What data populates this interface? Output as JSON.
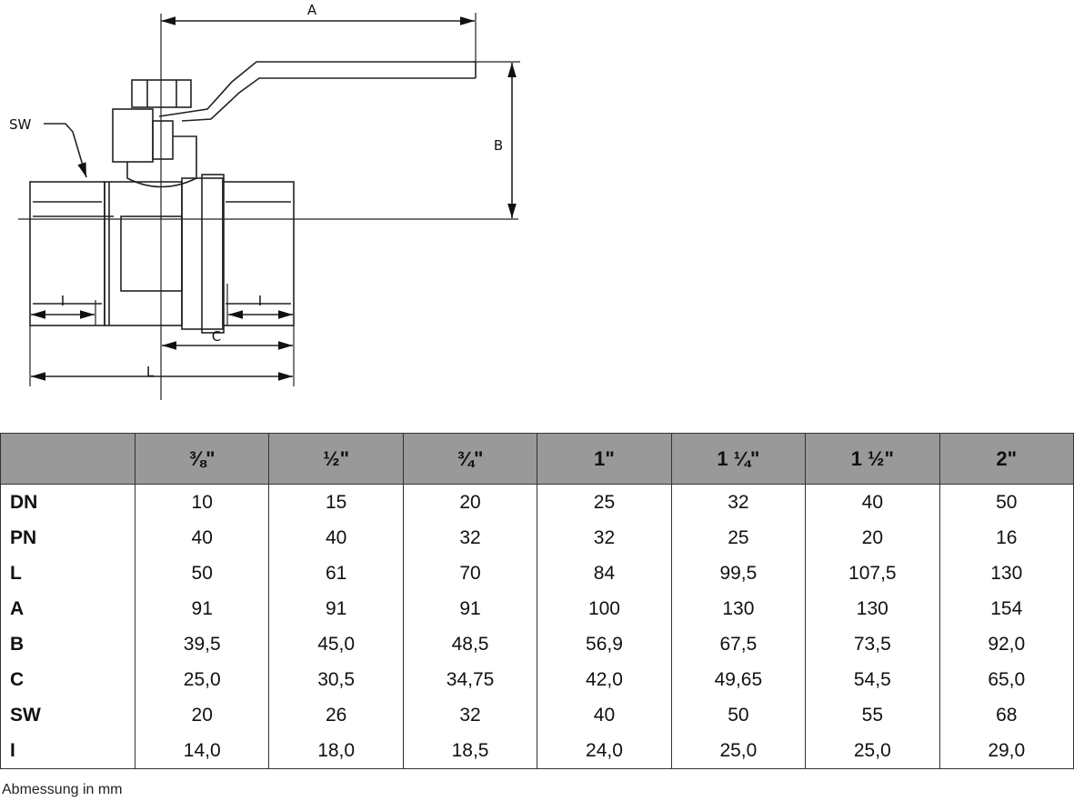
{
  "drawing": {
    "labels": {
      "A": "A",
      "B": "B",
      "C": "C",
      "L": "L",
      "SW": "SW",
      "I_left": "I",
      "I_right": "I"
    }
  },
  "table": {
    "header_color": "#999999",
    "columns": [
      "",
      "3/8\"",
      "1/2\"",
      "3/4\"",
      "1\"",
      "1 1/4\"",
      "1 1/2\"",
      "2\""
    ],
    "columns_display": [
      "",
      "⅜\"",
      "½\"",
      "¾\"",
      "1\"",
      "1 ¼\"",
      "1 ½\"",
      "2\""
    ],
    "rows": [
      {
        "label": "DN",
        "values": [
          "10",
          "15",
          "20",
          "25",
          "32",
          "40",
          "50"
        ]
      },
      {
        "label": "PN",
        "values": [
          "40",
          "40",
          "32",
          "32",
          "25",
          "20",
          "16"
        ]
      },
      {
        "label": "L",
        "values": [
          "50",
          "61",
          "70",
          "84",
          "99,5",
          "107,5",
          "130"
        ]
      },
      {
        "label": "A",
        "values": [
          "91",
          "91",
          "91",
          "100",
          "130",
          "130",
          "154"
        ]
      },
      {
        "label": "B",
        "values": [
          "39,5",
          "45,0",
          "48,5",
          "56,9",
          "67,5",
          "73,5",
          "92,0"
        ]
      },
      {
        "label": "C",
        "values": [
          "25,0",
          "30,5",
          "34,75",
          "42,0",
          "49,65",
          "54,5",
          "65,0"
        ]
      },
      {
        "label": "SW",
        "values": [
          "20",
          "26",
          "32",
          "40",
          "50",
          "55",
          "68"
        ]
      },
      {
        "label": "I",
        "values": [
          "14,0",
          "18,0",
          "18,5",
          "24,0",
          "25,0",
          "25,0",
          "29,0"
        ]
      }
    ]
  },
  "note": "Abmessung in mm"
}
